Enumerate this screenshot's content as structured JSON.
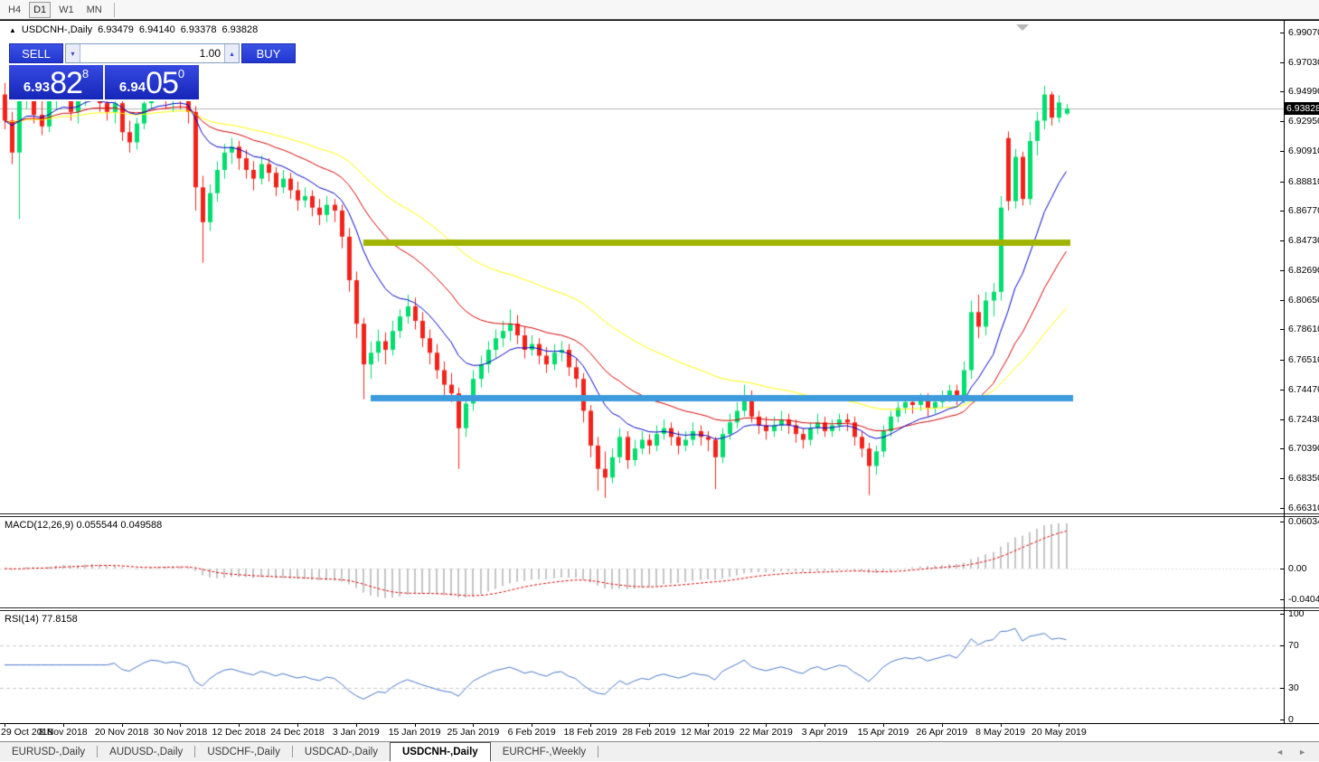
{
  "toolbar": {
    "timeframes": [
      {
        "label": "H4"
      },
      {
        "label": "D1",
        "active": true
      },
      {
        "label": "W1"
      },
      {
        "label": "MN"
      }
    ]
  },
  "symbol_info": {
    "symbol": "USDCNH-,Daily",
    "open": "6.93479",
    "high": "6.94140",
    "low": "6.93378",
    "close": "6.93828"
  },
  "trade_panel": {
    "sell_label": "SELL",
    "buy_label": "BUY",
    "volume": "1.00",
    "bid_small": "6.93",
    "bid_big": "82",
    "bid_sup": "8",
    "ask_small": "6.94",
    "ask_big": "05",
    "ask_sup": "0"
  },
  "price_axis": {
    "labels": [
      "6.99070",
      "6.97030",
      "6.94990",
      "6.92950",
      "6.90910",
      "6.88810",
      "6.86770",
      "6.84730",
      "6.82690",
      "6.80650",
      "6.78610",
      "6.76510",
      "6.74470",
      "6.72430",
      "6.70390",
      "6.68350",
      "6.66310"
    ],
    "current_tag": "6.93828"
  },
  "macd_panel": {
    "label": "MACD(12,26,9) 0.055544 0.049588",
    "axis_labels": [
      "0.060342",
      "0.00",
      "-0.040415"
    ]
  },
  "rsi_panel": {
    "label": "RSI(14) 77.8158",
    "axis_labels": [
      "100",
      "70",
      "30",
      "0"
    ]
  },
  "date_axis": [
    "29 Oct 2018",
    "8 Nov 2018",
    "20 Nov 2018",
    "30 Nov 2018",
    "12 Dec 2018",
    "24 Dec 2018",
    "3 Jan 2019",
    "15 Jan 2019",
    "25 Jan 2019",
    "6 Feb 2019",
    "18 Feb 2019",
    "28 Feb 2019",
    "12 Mar 2019",
    "22 Mar 2019",
    "3 Apr 2019",
    "15 Apr 2019",
    "26 Apr 2019",
    "8 May 2019",
    "20 May 2019"
  ],
  "tabs": {
    "items": [
      "EURUSD-,Daily",
      "AUDUSD-,Daily",
      "USDCHF-,Daily",
      "USDCAD-,Daily",
      "USDCNH-,Daily",
      "EURCHF-,Weekly"
    ],
    "active_index": 4
  },
  "colors": {
    "bull": "#00de6e",
    "bear": "#f3231b",
    "ema_fast": "#0000c8",
    "ema_mid": "#d40000",
    "ema_slow": "#ffff00",
    "resistance_line": "#9fb400",
    "support_line": "#3b9bdd",
    "macd_hist": "#c4c4c4",
    "macd_signal": "#e00000",
    "rsi_line": "#4878c8",
    "rsi_level": "#c8c8c8",
    "price_line": "#b4b4b4",
    "tag_bg": "#000000"
  },
  "chart_data": {
    "type": "candlestick",
    "symbol": "USDCNH-",
    "timeframe": "Daily",
    "title": "USDCNH-,Daily",
    "y_range": [
      6.6631,
      6.9907
    ],
    "current_price": 6.93828,
    "levels": {
      "resistance": 6.8462,
      "support": 6.7392
    },
    "overlays": [
      "EMA12",
      "EMA26",
      "EMA50"
    ],
    "x_labels_every": 8,
    "candles": [
      [
        6.948,
        6.956,
        6.924,
        6.93
      ],
      [
        6.93,
        6.936,
        6.9,
        6.908
      ],
      [
        6.908,
        6.952,
        6.862,
        6.946
      ],
      [
        6.946,
        6.958,
        6.938,
        6.952
      ],
      [
        6.952,
        6.956,
        6.928,
        6.934
      ],
      [
        6.934,
        6.944,
        6.92,
        6.926
      ],
      [
        6.926,
        6.95,
        6.922,
        6.944
      ],
      [
        6.944,
        6.958,
        6.938,
        6.956
      ],
      [
        6.956,
        6.962,
        6.944,
        6.95
      ],
      [
        6.95,
        6.954,
        6.93,
        6.936
      ],
      [
        6.936,
        6.948,
        6.928,
        6.944
      ],
      [
        6.944,
        6.96,
        6.94,
        6.958
      ],
      [
        6.958,
        6.962,
        6.946,
        6.952
      ],
      [
        6.952,
        6.956,
        6.936,
        6.942
      ],
      [
        6.942,
        6.95,
        6.93,
        6.936
      ],
      [
        6.936,
        6.946,
        6.928,
        6.942
      ],
      [
        6.942,
        6.948,
        6.916,
        6.922
      ],
      [
        6.922,
        6.93,
        6.908,
        6.915
      ],
      [
        6.915,
        6.932,
        6.91,
        6.928
      ],
      [
        6.928,
        6.946,
        6.924,
        6.942
      ],
      [
        6.942,
        6.956,
        6.938,
        6.952
      ],
      [
        6.952,
        6.96,
        6.944,
        6.95
      ],
      [
        6.95,
        6.954,
        6.938,
        6.944
      ],
      [
        6.944,
        6.952,
        6.936,
        6.948
      ],
      [
        6.948,
        6.954,
        6.938,
        6.944
      ],
      [
        6.944,
        6.95,
        6.928,
        6.936
      ],
      [
        6.936,
        6.94,
        6.868,
        6.884
      ],
      [
        6.884,
        6.892,
        6.832,
        6.86
      ],
      [
        6.86,
        6.886,
        6.854,
        6.88
      ],
      [
        6.88,
        6.902,
        6.874,
        6.896
      ],
      [
        6.896,
        6.914,
        6.89,
        6.908
      ],
      [
        6.908,
        6.918,
        6.9,
        6.912
      ],
      [
        6.912,
        6.916,
        6.896,
        6.904
      ],
      [
        6.904,
        6.91,
        6.89,
        6.896
      ],
      [
        6.896,
        6.902,
        6.882,
        6.89
      ],
      [
        6.89,
        6.906,
        6.886,
        6.9
      ],
      [
        6.9,
        6.904,
        6.888,
        6.894
      ],
      [
        6.894,
        6.898,
        6.878,
        6.884
      ],
      [
        6.884,
        6.896,
        6.88,
        6.89
      ],
      [
        6.89,
        6.894,
        6.876,
        6.882
      ],
      [
        6.882,
        6.888,
        6.868,
        6.875
      ],
      [
        6.875,
        6.884,
        6.87,
        6.878
      ],
      [
        6.878,
        6.882,
        6.864,
        6.87
      ],
      [
        6.87,
        6.876,
        6.858,
        6.865
      ],
      [
        6.865,
        6.878,
        6.86,
        6.872
      ],
      [
        6.872,
        6.876,
        6.86,
        6.868
      ],
      [
        6.868,
        6.872,
        6.842,
        6.85
      ],
      [
        6.85,
        6.856,
        6.812,
        6.82
      ],
      [
        6.82,
        6.826,
        6.78,
        6.79
      ],
      [
        6.79,
        6.794,
        6.738,
        6.762
      ],
      [
        6.762,
        6.778,
        6.752,
        6.77
      ],
      [
        6.77,
        6.786,
        6.764,
        6.778
      ],
      [
        6.778,
        6.784,
        6.762,
        6.772
      ],
      [
        6.772,
        6.792,
        6.768,
        6.785
      ],
      [
        6.785,
        6.8,
        6.78,
        6.795
      ],
      [
        6.795,
        6.81,
        6.79,
        6.802
      ],
      [
        6.802,
        6.808,
        6.786,
        6.792
      ],
      [
        6.792,
        6.798,
        6.774,
        6.78
      ],
      [
        6.78,
        6.786,
        6.762,
        6.77
      ],
      [
        6.77,
        6.776,
        6.752,
        6.758
      ],
      [
        6.758,
        6.764,
        6.74,
        6.748
      ],
      [
        6.748,
        6.756,
        6.736,
        6.742
      ],
      [
        6.742,
        6.746,
        6.69,
        6.718
      ],
      [
        6.718,
        6.74,
        6.712,
        6.735
      ],
      [
        6.735,
        6.758,
        6.73,
        6.752
      ],
      [
        6.752,
        6.768,
        6.746,
        6.762
      ],
      [
        6.762,
        6.778,
        6.756,
        6.772
      ],
      [
        6.772,
        6.786,
        6.766,
        6.78
      ],
      [
        6.78,
        6.792,
        6.774,
        6.785
      ],
      [
        6.785,
        6.8,
        6.778,
        6.79
      ],
      [
        6.79,
        6.796,
        6.776,
        6.782
      ],
      [
        6.782,
        6.788,
        6.766,
        6.772
      ],
      [
        6.772,
        6.782,
        6.768,
        6.776
      ],
      [
        6.776,
        6.78,
        6.762,
        6.768
      ],
      [
        6.768,
        6.774,
        6.756,
        6.762
      ],
      [
        6.762,
        6.776,
        6.758,
        6.77
      ],
      [
        6.77,
        6.778,
        6.764,
        6.772
      ],
      [
        6.772,
        6.776,
        6.754,
        6.76
      ],
      [
        6.76,
        6.766,
        6.746,
        6.752
      ],
      [
        6.752,
        6.756,
        6.722,
        6.73
      ],
      [
        6.73,
        6.734,
        6.698,
        6.706
      ],
      [
        6.706,
        6.712,
        6.675,
        6.69
      ],
      [
        6.69,
        6.702,
        6.67,
        6.684
      ],
      [
        6.684,
        6.704,
        6.68,
        6.698
      ],
      [
        6.698,
        6.718,
        6.694,
        6.712
      ],
      [
        6.712,
        6.716,
        6.69,
        6.696
      ],
      [
        6.696,
        6.71,
        6.692,
        6.704
      ],
      [
        6.704,
        6.716,
        6.7,
        6.71
      ],
      [
        6.71,
        6.714,
        6.7,
        6.706
      ],
      [
        6.706,
        6.72,
        6.702,
        6.714
      ],
      [
        6.714,
        6.724,
        6.71,
        6.718
      ],
      [
        6.718,
        6.722,
        6.706,
        6.712
      ],
      [
        6.712,
        6.716,
        6.7,
        6.706
      ],
      [
        6.706,
        6.716,
        6.702,
        6.71
      ],
      [
        6.71,
        6.722,
        6.706,
        6.716
      ],
      [
        6.716,
        6.72,
        6.706,
        6.712
      ],
      [
        6.712,
        6.716,
        6.702,
        6.71
      ],
      [
        6.71,
        6.712,
        6.676,
        6.698
      ],
      [
        6.698,
        6.718,
        6.694,
        6.714
      ],
      [
        6.714,
        6.728,
        6.71,
        6.722
      ],
      [
        6.722,
        6.736,
        6.718,
        6.73
      ],
      [
        6.73,
        6.748,
        6.726,
        6.74
      ],
      [
        6.74,
        6.744,
        6.722,
        6.726
      ],
      [
        6.726,
        6.73,
        6.714,
        6.72
      ],
      [
        6.72,
        6.726,
        6.71,
        6.716
      ],
      [
        6.716,
        6.726,
        6.712,
        6.72
      ],
      [
        6.72,
        6.73,
        6.716,
        6.724
      ],
      [
        6.724,
        6.728,
        6.714,
        6.72
      ],
      [
        6.72,
        6.724,
        6.708,
        6.714
      ],
      [
        6.714,
        6.718,
        6.704,
        6.71
      ],
      [
        6.71,
        6.722,
        6.706,
        6.718
      ],
      [
        6.718,
        6.728,
        6.714,
        6.722
      ],
      [
        6.722,
        6.726,
        6.712,
        6.716
      ],
      [
        6.716,
        6.724,
        6.712,
        6.72
      ],
      [
        6.72,
        6.728,
        6.716,
        6.724
      ],
      [
        6.724,
        6.728,
        6.716,
        6.722
      ],
      [
        6.722,
        6.726,
        6.706,
        6.712
      ],
      [
        6.712,
        6.716,
        6.698,
        6.704
      ],
      [
        6.704,
        6.708,
        6.672,
        6.692
      ],
      [
        6.692,
        6.706,
        6.686,
        6.702
      ],
      [
        6.702,
        6.72,
        6.698,
        6.716
      ],
      [
        6.716,
        6.73,
        6.712,
        6.726
      ],
      [
        6.726,
        6.736,
        6.722,
        6.732
      ],
      [
        6.732,
        6.74,
        6.728,
        6.736
      ],
      [
        6.736,
        6.74,
        6.728,
        6.734
      ],
      [
        6.734,
        6.742,
        6.73,
        6.738
      ],
      [
        6.738,
        6.742,
        6.726,
        6.732
      ],
      [
        6.732,
        6.74,
        6.728,
        6.736
      ],
      [
        6.736,
        6.744,
        6.732,
        6.74
      ],
      [
        6.74,
        6.748,
        6.736,
        6.744
      ],
      [
        6.744,
        6.748,
        6.734,
        6.74
      ],
      [
        6.74,
        6.764,
        6.735,
        6.758
      ],
      [
        6.758,
        6.806,
        6.752,
        6.798
      ],
      [
        6.798,
        6.81,
        6.78,
        6.788
      ],
      [
        6.788,
        6.812,
        6.782,
        6.806
      ],
      [
        6.806,
        6.818,
        6.795,
        6.812
      ],
      [
        6.812,
        6.878,
        6.806,
        6.87
      ],
      [
        6.918,
        6.9225,
        6.868,
        6.8745
      ],
      [
        6.8745,
        6.9105,
        6.8695,
        6.905
      ],
      [
        6.905,
        6.9085,
        6.8715,
        6.876
      ],
      [
        6.876,
        6.922,
        6.872,
        6.916
      ],
      [
        6.916,
        6.936,
        6.906,
        6.93
      ],
      [
        6.93,
        6.954,
        6.924,
        6.948
      ],
      [
        6.948,
        6.95,
        6.9265,
        6.932
      ],
      [
        6.932,
        6.9475,
        6.9285,
        6.9425
      ],
      [
        6.93479,
        6.9414,
        6.93378,
        6.93828
      ]
    ]
  }
}
